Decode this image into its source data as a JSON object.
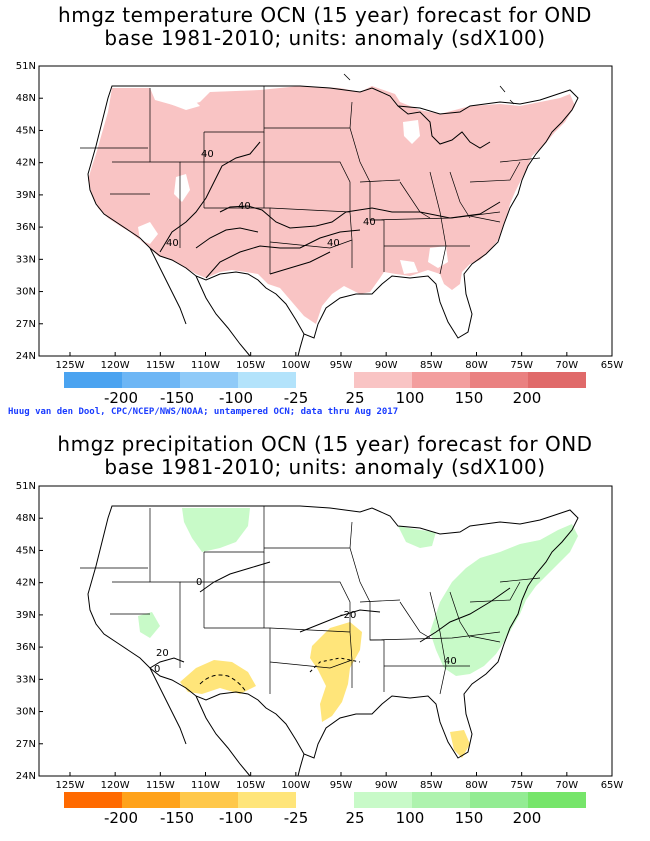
{
  "panels": [
    {
      "title1": "hmgz temperature OCN (15  year) forecast for OND",
      "title2": "base 1981-2010; units: anomaly (sdX100)",
      "contour_labels": [
        "40",
        "40",
        "40",
        "40",
        "40"
      ],
      "colorbar": {
        "neg_colors": [
          "#4aa3f0",
          "#6db6f5",
          "#8fcaf8",
          "#b3e3fb"
        ],
        "pos_colors": [
          "#f9c4c4",
          "#f39e9e",
          "#ea8181",
          "#e06a6a"
        ],
        "labels": [
          "-200",
          "-150",
          "-100",
          "-25",
          "25",
          "100",
          "150",
          "200"
        ]
      }
    },
    {
      "title1": "hmgz precipitation OCN (15 year) forecast for OND",
      "title2": "base 1981-2010; units: anomaly (sdX100)",
      "contour_labels": [
        "0",
        "20",
        "0",
        "-20",
        "40"
      ],
      "colorbar": {
        "neg_colors": [
          "#ff6a00",
          "#ffa21a",
          "#ffc84a",
          "#ffe57a"
        ],
        "pos_colors": [
          "#c8fac8",
          "#aef3ae",
          "#93ec93",
          "#76e56a"
        ],
        "labels": [
          "-200",
          "-150",
          "-100",
          "-25",
          "25",
          "100",
          "150",
          "200"
        ]
      }
    }
  ],
  "lat_labels": [
    "51N",
    "48N",
    "45N",
    "42N",
    "39N",
    "36N",
    "33N",
    "30N",
    "27N",
    "24N"
  ],
  "lon_labels": [
    "125W",
    "120W",
    "115W",
    "110W",
    "105W",
    "100W",
    "95W",
    "90W",
    "85W",
    "80W",
    "75W",
    "70W",
    "65W"
  ],
  "credit": "Huug van den Dool, CPC/NCEP/NWS/NOAA; untampered OCN; data thru Aug 2017"
}
